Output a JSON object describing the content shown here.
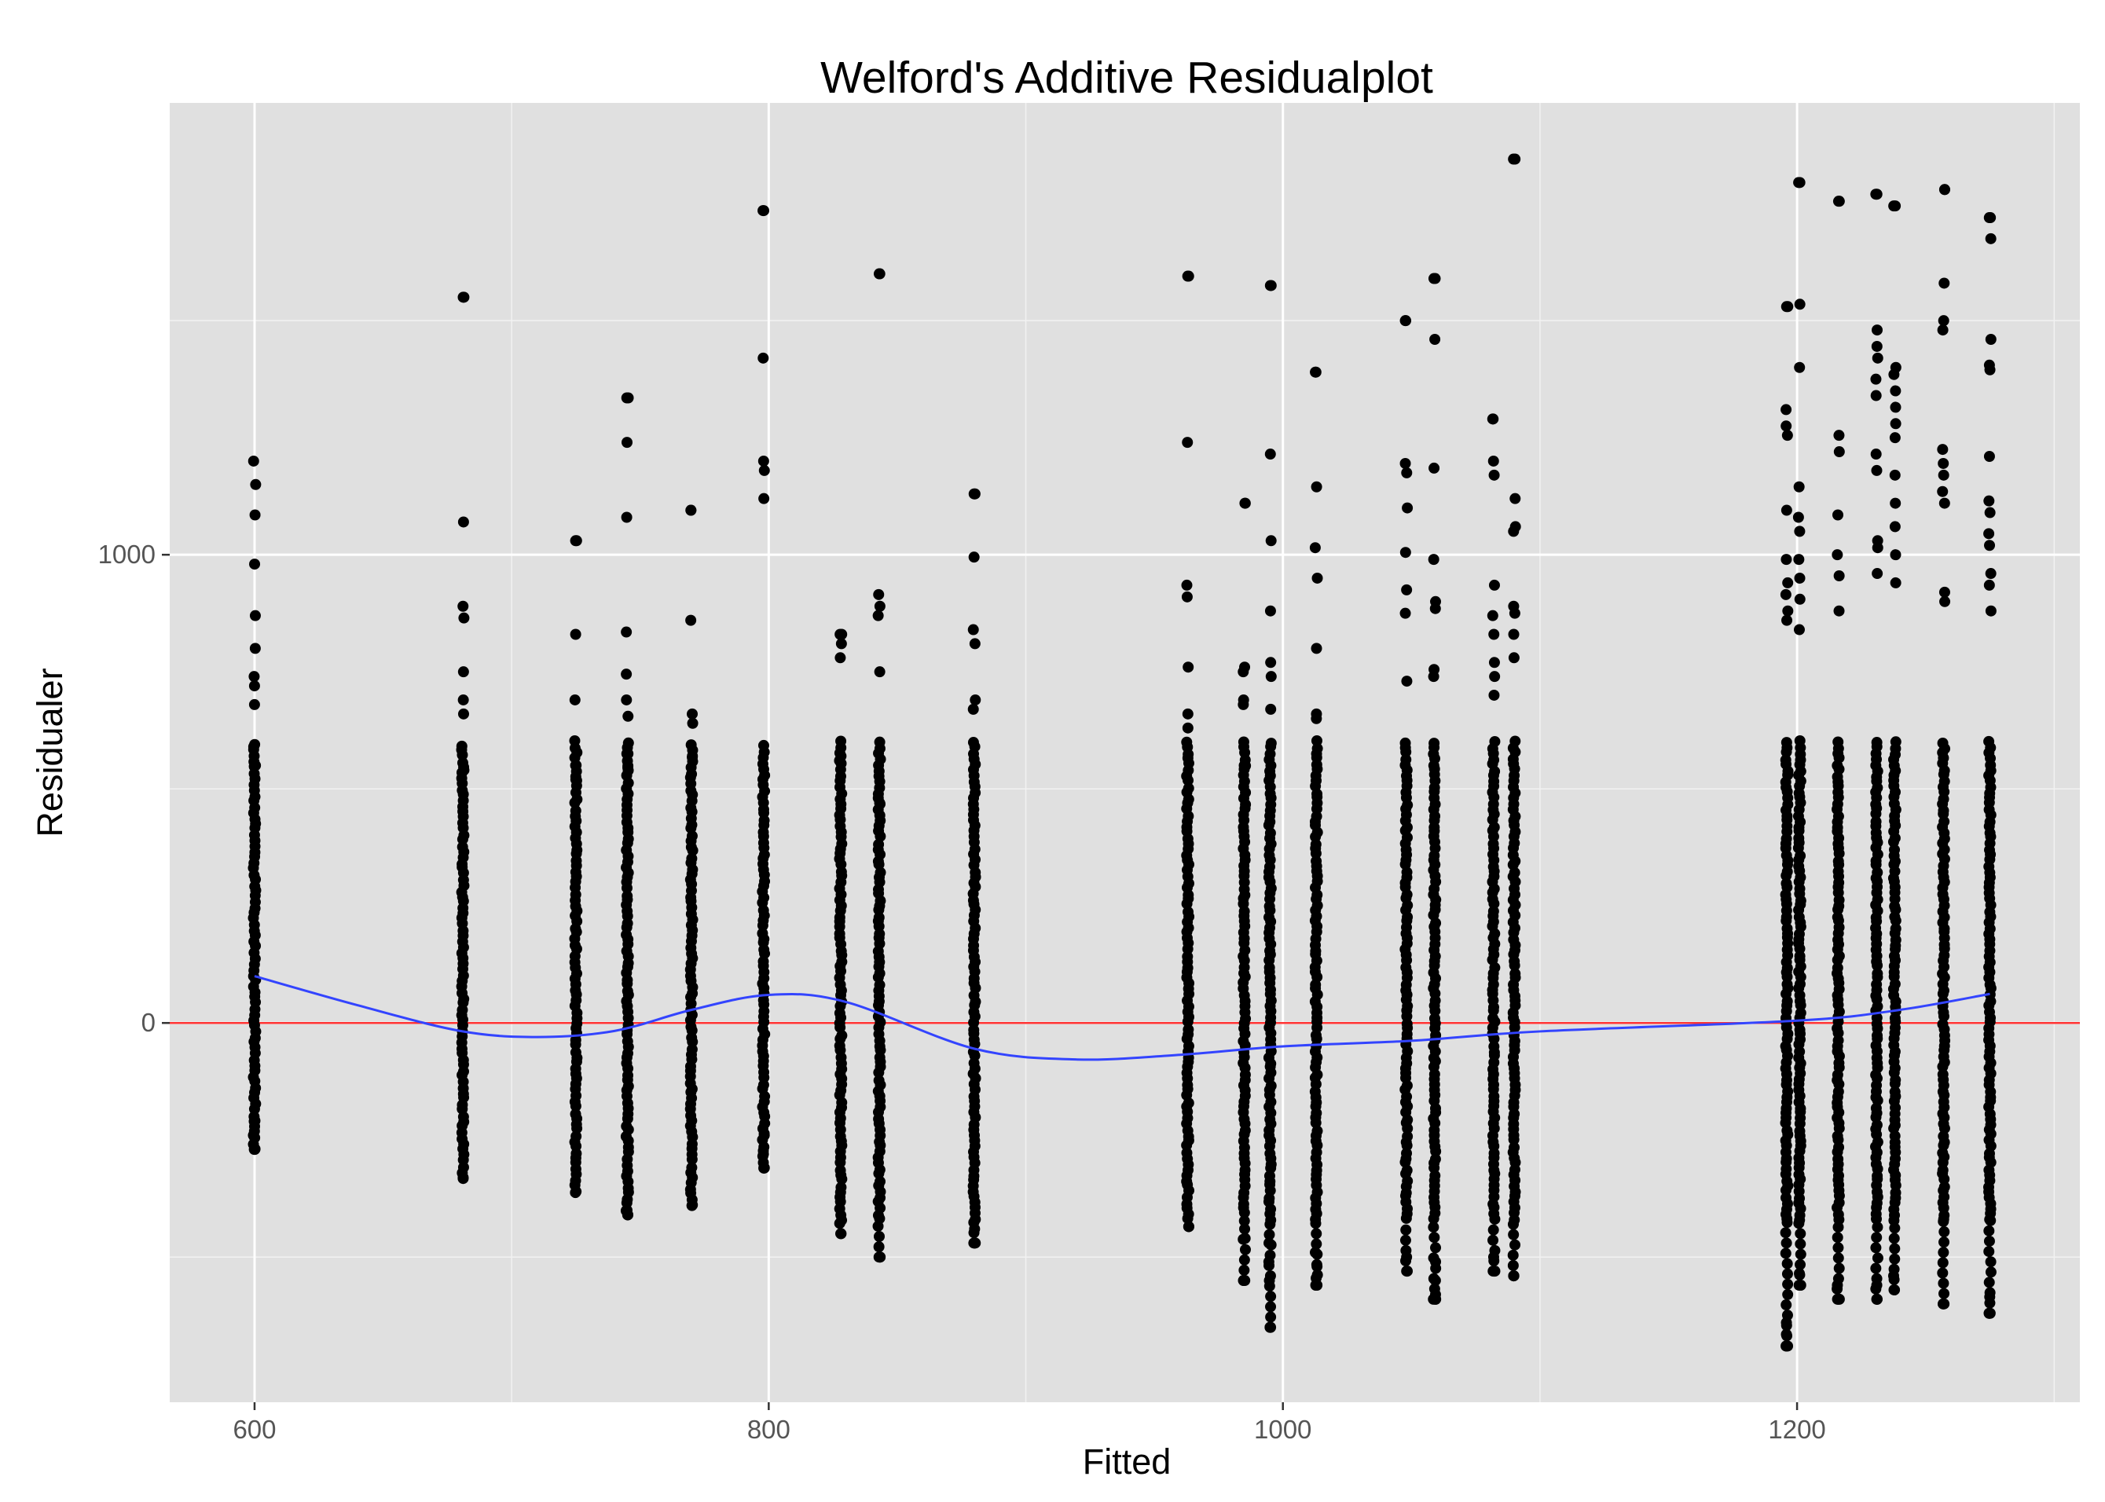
{
  "chart_data": {
    "type": "scatter",
    "title": "Welford's Additive Residualplot",
    "xlabel": "Fitted",
    "ylabel": "Residualer",
    "xlim": [
      567,
      1310
    ],
    "ylim": [
      -810,
      1965
    ],
    "x_major_ticks": [
      600,
      800,
      1000,
      1200
    ],
    "x_tick_labels": [
      "600",
      "800",
      "1000",
      "1200"
    ],
    "x_minor_ticks": [
      700,
      900,
      1100,
      1300
    ],
    "y_major_ticks": [
      0,
      1000
    ],
    "y_tick_labels": [
      "0",
      "1000"
    ],
    "y_minor_ticks": [
      -500,
      500,
      1500
    ],
    "grid": true,
    "background_color": "#e0e0e0",
    "grid_color": "#ffffff",
    "point_color": "#000000",
    "reference_line": {
      "y": 0,
      "color": "#ff3333"
    },
    "smooth_line": {
      "color": "#3344ff",
      "x": [
        600,
        640,
        680,
        710,
        740,
        770,
        800,
        830,
        880,
        920,
        960,
        1000,
        1050,
        1100,
        1200,
        1240,
        1275
      ],
      "y": [
        100,
        38,
        -17,
        -30,
        -17,
        28,
        60,
        45,
        -55,
        -78,
        -68,
        -50,
        -38,
        -18,
        5,
        28,
        62
      ]
    },
    "point_groups": [
      {
        "x": 600,
        "min": -270,
        "max": 1200,
        "outliers": [
          1150,
          1085,
          980,
          870,
          800,
          740,
          720,
          680,
          590,
          550,
          -210,
          -240,
          -270
        ]
      },
      {
        "x": 681,
        "min": -330,
        "max": 1550,
        "outliers": [
          1550,
          1070,
          890,
          865,
          750,
          690,
          660,
          540
        ]
      },
      {
        "x": 725,
        "min": -360,
        "max": 1030,
        "outliers": [
          1030,
          830,
          690,
          550,
          520
        ]
      },
      {
        "x": 745,
        "min": -410,
        "max": 1335,
        "outliers": [
          1335,
          1240,
          1080,
          835,
          745,
          690,
          655,
          575,
          545,
          -400
        ]
      },
      {
        "x": 770,
        "min": -390,
        "max": 1095,
        "outliers": [
          1095,
          860,
          660,
          640,
          570
        ]
      },
      {
        "x": 798,
        "min": -310,
        "max": 1735,
        "outliers": [
          1735,
          1420,
          1200,
          1180,
          1120,
          -240,
          -280,
          -310
        ]
      },
      {
        "x": 828,
        "min": -450,
        "max": 830,
        "outliers": [
          830,
          810,
          780,
          570,
          560
        ]
      },
      {
        "x": 843,
        "min": -500,
        "max": 1600,
        "outliers": [
          1600,
          915,
          890,
          870,
          750,
          470,
          -500
        ]
      },
      {
        "x": 880,
        "min": -470,
        "max": 1130,
        "outliers": [
          1130,
          995,
          840,
          810,
          690,
          670,
          -440,
          -470
        ]
      },
      {
        "x": 963,
        "min": -435,
        "max": 1595,
        "outliers": [
          1595,
          1240,
          935,
          910,
          760,
          660,
          630
        ]
      },
      {
        "x": 985,
        "min": -550,
        "max": 1110,
        "outliers": [
          1110,
          760,
          750,
          690,
          680,
          550,
          -460,
          -550
        ]
      },
      {
        "x": 995,
        "min": -650,
        "max": 1575,
        "outliers": [
          1575,
          1215,
          1030,
          880,
          770,
          740,
          670,
          -470,
          -510,
          -550,
          -650
        ]
      },
      {
        "x": 1013,
        "min": -560,
        "max": 1390,
        "outliers": [
          1390,
          1145,
          1015,
          950,
          800,
          660,
          650,
          -490,
          -520,
          -545,
          -560
        ]
      },
      {
        "x": 1048,
        "min": -530,
        "max": 1500,
        "outliers": [
          1500,
          1195,
          1175,
          1100,
          1005,
          925,
          875,
          730,
          -500,
          -530
        ]
      },
      {
        "x": 1059,
        "min": -590,
        "max": 1590,
        "outliers": [
          1590,
          1460,
          1185,
          990,
          900,
          885,
          755,
          740,
          -510,
          -550,
          -580,
          -590
        ]
      },
      {
        "x": 1082,
        "min": -530,
        "max": 1290,
        "outliers": [
          1290,
          1200,
          1170,
          935,
          870,
          830,
          770,
          740,
          700,
          -500,
          -530
        ]
      },
      {
        "x": 1090,
        "min": -540,
        "max": 1845,
        "outliers": [
          1845,
          1120,
          1060,
          1050,
          890,
          875,
          830,
          780,
          -540
        ]
      },
      {
        "x": 1196,
        "min": -690,
        "max": 1530,
        "outliers": [
          1530,
          1310,
          1275,
          1255,
          1095,
          990,
          940,
          915,
          880,
          860,
          -640,
          -665,
          -690
        ]
      },
      {
        "x": 1201,
        "min": -560,
        "max": 1795,
        "outliers": [
          1795,
          1535,
          1400,
          1145,
          1080,
          1050,
          990,
          950,
          905,
          840,
          -535,
          -560
        ]
      },
      {
        "x": 1216,
        "min": -590,
        "max": 1755,
        "outliers": [
          1755,
          1255,
          1220,
          1085,
          1000,
          955,
          880,
          -560,
          -590
        ]
      },
      {
        "x": 1231,
        "min": -590,
        "max": 1770,
        "outliers": [
          1770,
          1480,
          1445,
          1420,
          1375,
          1340,
          1215,
          1180,
          1030,
          1015,
          960,
          -560,
          -590
        ]
      },
      {
        "x": 1238,
        "min": -570,
        "max": 1745,
        "outliers": [
          1745,
          1400,
          1385,
          1350,
          1315,
          1280,
          1250,
          1170,
          1110,
          1060,
          1000,
          940,
          -540,
          -570
        ]
      },
      {
        "x": 1257,
        "min": -600,
        "max": 1780,
        "outliers": [
          1780,
          1580,
          1500,
          1480,
          1225,
          1195,
          1170,
          1135,
          1110,
          920,
          900,
          -600
        ]
      },
      {
        "x": 1275,
        "min": -620,
        "max": 1720,
        "outliers": [
          1720,
          1675,
          1460,
          1405,
          1395,
          1210,
          1115,
          1090,
          1045,
          1020,
          960,
          935,
          880,
          -585,
          -620
        ]
      }
    ]
  }
}
